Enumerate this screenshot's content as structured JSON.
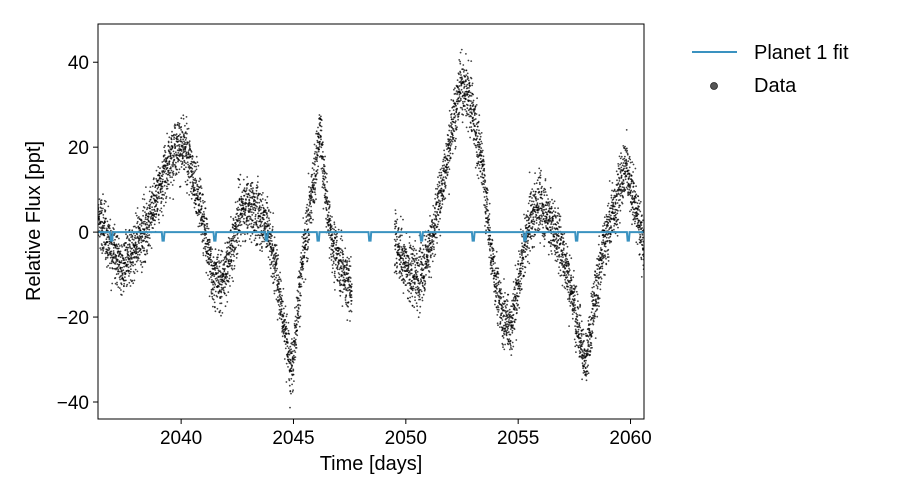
{
  "chart_data": {
    "type": "scatter",
    "title": "",
    "xlabel": "Time [days]",
    "ylabel": "Relative Flux [ppt]",
    "xlim": [
      2036.3,
      2060.6
    ],
    "ylim": [
      -44,
      49
    ],
    "xticks": [
      2040,
      2045,
      2050,
      2055,
      2060
    ],
    "yticks": [
      -40,
      -20,
      0,
      20,
      40
    ],
    "grid": false,
    "legend_position": "outside-top-right",
    "colors": {
      "fit": "#3a92c0",
      "data": "#000000",
      "axes": "#000000"
    },
    "data_segments": [
      {
        "t_start": 2036.3,
        "t_end": 2047.6
      },
      {
        "t_start": 2049.5,
        "t_end": 2060.6
      }
    ],
    "flux_trend": {
      "t": [
        2036.3,
        2036.8,
        2037.4,
        2038.0,
        2038.6,
        2039.2,
        2039.8,
        2040.3,
        2040.9,
        2041.4,
        2041.8,
        2042.3,
        2042.6,
        2043.1,
        2043.8,
        2044.2,
        2044.6,
        2044.9,
        2045.3,
        2045.8,
        2046.2,
        2046.4,
        2046.7,
        2047.1,
        2047.6,
        2049.5,
        2050.1,
        2050.6,
        2051.1,
        2051.8,
        2052.4,
        2052.9,
        2053.4,
        2053.8,
        2054.3,
        2054.7,
        2055.1,
        2055.5,
        2055.9,
        2056.4,
        2056.9,
        2057.3,
        2057.7,
        2058.0,
        2058.4,
        2058.8,
        2059.3,
        2059.8,
        2060.3,
        2060.6
      ],
      "flux": [
        3,
        -2,
        -9,
        -3,
        3,
        13,
        21,
        18,
        5,
        -10,
        -12,
        -3,
        5,
        6,
        2,
        -8,
        -22,
        -33,
        -12,
        8,
        24,
        10,
        -2,
        -8,
        -14,
        -2,
        -9,
        -11,
        -3,
        16,
        35,
        30,
        16,
        -5,
        -20,
        -22,
        -9,
        2,
        7,
        3,
        -3,
        -12,
        -22,
        -32,
        -16,
        -3,
        6,
        16,
        4,
        -3
      ],
      "scatter_ppt": 3.5,
      "points_per_day": 280
    },
    "planet_fit": {
      "name": "Planet 1 fit",
      "baseline": 0,
      "transit_depth": -2,
      "transit_times": [
        2036.9,
        2039.2,
        2041.5,
        2043.8,
        2046.1,
        2048.4,
        2050.7,
        2053.0,
        2055.3,
        2057.6,
        2059.9
      ]
    },
    "legend": [
      {
        "label": "Planet 1 fit",
        "kind": "line"
      },
      {
        "label": "Data",
        "kind": "marker"
      }
    ]
  }
}
